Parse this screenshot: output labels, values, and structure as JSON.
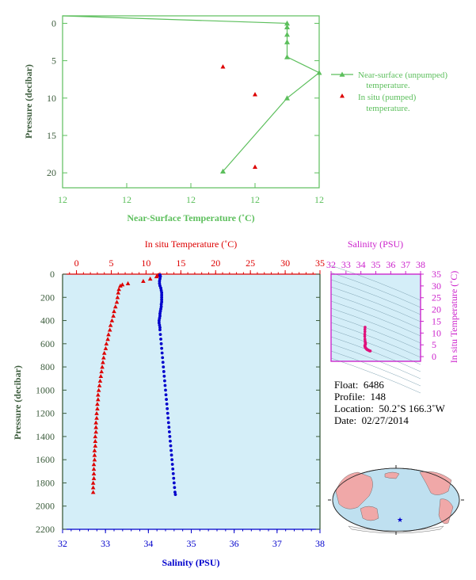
{
  "chart_data": [
    {
      "type": "scatter",
      "ylabel": "Pressure (decibar)",
      "xlabel": "Near-Surface Temperature (˚C)",
      "ylim": [
        22,
        -1
      ],
      "y_ticks": [
        "0",
        "5",
        "10",
        "15",
        "20"
      ],
      "x_ticks": [
        "12",
        "12",
        "12",
        "12",
        "12"
      ],
      "legend": {
        "placement": "right",
        "entries": [
          "Near-surface (unpumped) temperature.",
          "In situ (pumped) temperature."
        ]
      },
      "series": [
        {
          "name": "Near-surface (unpumped) temperature.",
          "marker": "triangle-line",
          "color": "#5cbf5c",
          "points": [
            {
              "x": 11.3,
              "y": -1.0
            },
            {
              "x": 12.0,
              "y": 0.0
            },
            {
              "x": 12.0,
              "y": 0.5
            },
            {
              "x": 12.0,
              "y": 1.5
            },
            {
              "x": 12.0,
              "y": 2.5
            },
            {
              "x": 12.0,
              "y": 4.5
            },
            {
              "x": 12.1,
              "y": 6.6
            },
            {
              "x": 12.0,
              "y": 10.0
            },
            {
              "x": 11.8,
              "y": 19.8
            }
          ]
        },
        {
          "name": "In situ (pumped) temperature.",
          "marker": "triangle",
          "color": "#dd0000",
          "points": [
            {
              "x": 11.8,
              "y": 5.8
            },
            {
              "x": 11.9,
              "y": 9.5
            },
            {
              "x": 11.9,
              "y": 19.2
            }
          ]
        }
      ]
    },
    {
      "type": "scatter",
      "ylabel": "Pressure (decibar)",
      "x_top_label": "In situ Temperature (˚C)",
      "x_bottom_label": "Salinity (PSU)",
      "temp_ticks": [
        0,
        5,
        10,
        15,
        20,
        25,
        30,
        35
      ],
      "sal_ticks": [
        32,
        33,
        34,
        35,
        36,
        37,
        38
      ],
      "pressure_ticks": [
        0,
        200,
        400,
        600,
        800,
        1000,
        1200,
        1400,
        1600,
        1800,
        2000,
        2200
      ],
      "temp_range": [
        -2,
        35
      ],
      "sal_range": [
        32,
        38
      ],
      "pressure_range": [
        0,
        2200
      ],
      "background": "#d4eef8",
      "temperature_color": "#dd0000",
      "salinity_color": "#0000cc",
      "temperature_profile": [
        [
          6,
          11.8
        ],
        [
          10,
          11.7
        ],
        [
          20,
          11.5
        ],
        [
          40,
          10.6
        ],
        [
          60,
          9.6
        ],
        [
          80,
          7.4
        ],
        [
          90,
          6.6
        ],
        [
          100,
          6.3
        ],
        [
          130,
          6.1
        ],
        [
          160,
          6.0
        ],
        [
          200,
          5.9
        ],
        [
          240,
          5.8
        ],
        [
          280,
          5.6
        ],
        [
          320,
          5.4
        ],
        [
          360,
          5.3
        ],
        [
          400,
          5.1
        ],
        [
          440,
          4.9
        ],
        [
          480,
          4.8
        ],
        [
          520,
          4.6
        ],
        [
          560,
          4.5
        ],
        [
          600,
          4.3
        ],
        [
          640,
          4.2
        ],
        [
          680,
          4.0
        ],
        [
          720,
          3.9
        ],
        [
          760,
          3.8
        ],
        [
          800,
          3.7
        ],
        [
          840,
          3.6
        ],
        [
          880,
          3.5
        ],
        [
          920,
          3.4
        ],
        [
          960,
          3.3
        ],
        [
          1000,
          3.2
        ],
        [
          1040,
          3.1
        ],
        [
          1080,
          3.1
        ],
        [
          1120,
          3.0
        ],
        [
          1160,
          3.0
        ],
        [
          1200,
          2.9
        ],
        [
          1240,
          2.9
        ],
        [
          1280,
          2.8
        ],
        [
          1320,
          2.8
        ],
        [
          1360,
          2.8
        ],
        [
          1400,
          2.7
        ],
        [
          1440,
          2.7
        ],
        [
          1480,
          2.7
        ],
        [
          1520,
          2.6
        ],
        [
          1560,
          2.6
        ],
        [
          1600,
          2.6
        ],
        [
          1640,
          2.5
        ],
        [
          1680,
          2.5
        ],
        [
          1720,
          2.5
        ],
        [
          1760,
          2.5
        ],
        [
          1800,
          2.4
        ],
        [
          1840,
          2.4
        ],
        [
          1880,
          2.4
        ]
      ],
      "salinity_profile": [
        [
          6,
          34.27
        ],
        [
          10,
          34.27
        ],
        [
          20,
          34.28
        ],
        [
          40,
          34.27
        ],
        [
          60,
          34.26
        ],
        [
          80,
          34.26
        ],
        [
          100,
          34.27
        ],
        [
          120,
          34.29
        ],
        [
          140,
          34.3
        ],
        [
          160,
          34.31
        ],
        [
          180,
          34.31
        ],
        [
          200,
          34.31
        ],
        [
          220,
          34.31
        ],
        [
          240,
          34.31
        ],
        [
          260,
          34.3
        ],
        [
          280,
          34.3
        ],
        [
          300,
          34.29
        ],
        [
          320,
          34.28
        ],
        [
          340,
          34.27
        ],
        [
          360,
          34.27
        ],
        [
          380,
          34.26
        ],
        [
          400,
          34.25
        ],
        [
          420,
          34.25
        ],
        [
          440,
          34.26
        ],
        [
          460,
          34.27
        ],
        [
          480,
          34.27
        ],
        [
          520,
          34.28
        ],
        [
          560,
          34.29
        ],
        [
          600,
          34.3
        ],
        [
          640,
          34.31
        ],
        [
          680,
          34.32
        ],
        [
          720,
          34.33
        ],
        [
          760,
          34.34
        ],
        [
          800,
          34.35
        ],
        [
          840,
          34.36
        ],
        [
          880,
          34.37
        ],
        [
          920,
          34.38
        ],
        [
          960,
          34.39
        ],
        [
          1000,
          34.4
        ],
        [
          1040,
          34.41
        ],
        [
          1080,
          34.42
        ],
        [
          1120,
          34.43
        ],
        [
          1160,
          34.44
        ],
        [
          1200,
          34.45
        ],
        [
          1240,
          34.46
        ],
        [
          1280,
          34.47
        ],
        [
          1320,
          34.48
        ],
        [
          1360,
          34.49
        ],
        [
          1400,
          34.5
        ],
        [
          1440,
          34.51
        ],
        [
          1480,
          34.52
        ],
        [
          1520,
          34.53
        ],
        [
          1560,
          34.54
        ],
        [
          1600,
          34.55
        ],
        [
          1640,
          34.56
        ],
        [
          1680,
          34.57
        ],
        [
          1720,
          34.58
        ],
        [
          1760,
          34.59
        ],
        [
          1800,
          34.6
        ],
        [
          1840,
          34.61
        ],
        [
          1880,
          34.62
        ],
        [
          1900,
          34.63
        ]
      ]
    },
    {
      "type": "scatter",
      "x_top_label": "Salinity (PSU)",
      "ylabel": "In situ Temperature (˚C)",
      "sal_ticks": [
        32,
        33,
        34,
        35,
        36,
        37,
        38
      ],
      "temp_ticks": [
        0,
        5,
        10,
        15,
        20,
        25,
        30,
        35
      ],
      "sal_range": [
        32,
        38
      ],
      "temp_range": [
        -2,
        35
      ],
      "color": "#e0107a",
      "ts_points": [
        [
          34.28,
          12.5
        ],
        [
          34.27,
          11.6
        ],
        [
          34.27,
          10.6
        ],
        [
          34.26,
          9.5
        ],
        [
          34.26,
          8.6
        ],
        [
          34.27,
          7.4
        ],
        [
          34.28,
          6.6
        ],
        [
          34.29,
          6.1
        ],
        [
          34.3,
          5.8
        ],
        [
          34.31,
          5.5
        ],
        [
          34.3,
          5.2
        ],
        [
          34.28,
          4.9
        ],
        [
          34.26,
          4.6
        ],
        [
          34.27,
          4.3
        ],
        [
          34.29,
          4.0
        ],
        [
          34.31,
          3.8
        ],
        [
          34.34,
          3.5
        ],
        [
          34.37,
          3.3
        ],
        [
          34.4,
          3.1
        ],
        [
          34.44,
          2.9
        ],
        [
          34.48,
          2.8
        ],
        [
          34.52,
          2.7
        ],
        [
          34.56,
          2.5
        ],
        [
          34.6,
          2.4
        ],
        [
          34.63,
          2.4
        ]
      ]
    }
  ],
  "info": {
    "float_label": "Float:",
    "float_value": "6486",
    "profile_label": "Profile:",
    "profile_value": "148",
    "location_label": "Location:",
    "location_value": "50.2˚S  166.3˚W",
    "date_label": "Date:",
    "date_value": "02/27/2014"
  },
  "map": {
    "marker_symbol": "★",
    "ocean_color": "#bfe0f0",
    "land_color": "#f0a8a8",
    "marker_color": "#0000cc"
  }
}
